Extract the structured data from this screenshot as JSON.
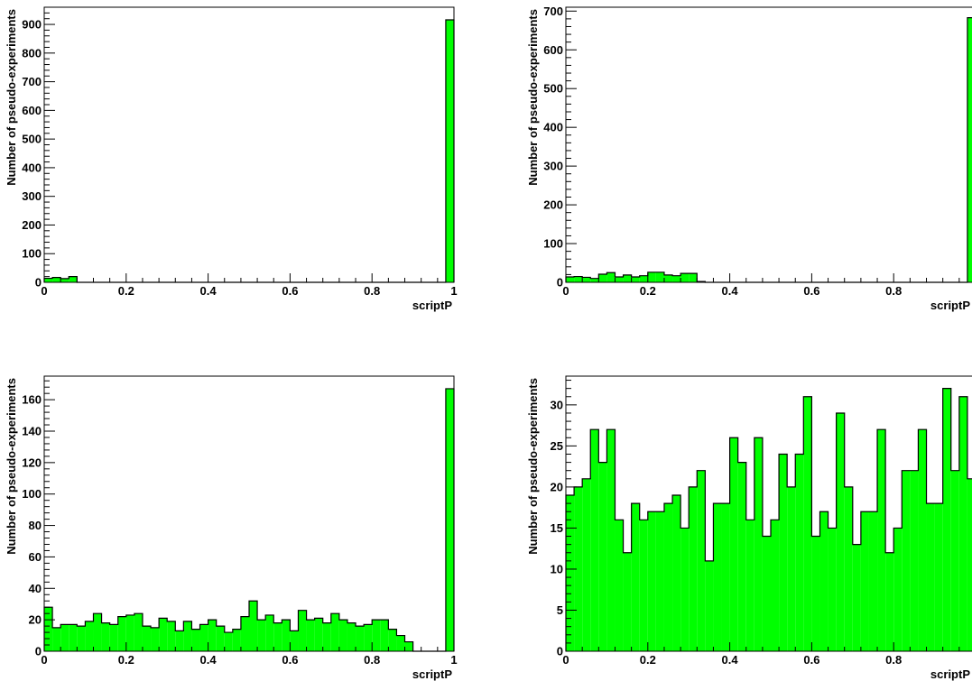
{
  "colors": {
    "fill": "#00ff00",
    "line": "#000000",
    "background": "#ffffff"
  },
  "chart_data": [
    {
      "type": "bar",
      "panel": "top-left",
      "xlabel": "scriptP",
      "ylabel": "Number of pseudo-experiments",
      "xlim": [
        0,
        1
      ],
      "ylim": [
        0,
        960
      ],
      "yticks": [
        0,
        100,
        200,
        300,
        400,
        500,
        600,
        700,
        800,
        900
      ],
      "xticks": [
        0,
        0.2,
        0.4,
        0.6,
        0.8,
        1
      ],
      "grid": false,
      "bin_width": 0.02,
      "bin_start": 0,
      "values": [
        14,
        17,
        13,
        20,
        0,
        0,
        0,
        0,
        0,
        0,
        0,
        0,
        0,
        0,
        0,
        0,
        0,
        0,
        0,
        0,
        0,
        0,
        0,
        0,
        0,
        0,
        0,
        0,
        0,
        0,
        0,
        0,
        0,
        0,
        0,
        0,
        0,
        0,
        0,
        0,
        0,
        0,
        0,
        0,
        0,
        0,
        0,
        0,
        0,
        916
      ]
    },
    {
      "type": "bar",
      "panel": "top-right",
      "xlabel": "scriptP",
      "ylabel": "Number of pseudo-experiments",
      "xlim": [
        0,
        1
      ],
      "ylim": [
        0,
        710
      ],
      "yticks": [
        0,
        100,
        200,
        300,
        400,
        500,
        600,
        700
      ],
      "xticks": [
        0,
        0.2,
        0.4,
        0.6,
        0.8
      ],
      "grid": false,
      "bin_width": 0.02,
      "bin_start": 0,
      "values": [
        14,
        15,
        13,
        10,
        21,
        25,
        14,
        19,
        14,
        17,
        26,
        26,
        19,
        17,
        23,
        23,
        2,
        0,
        0,
        0,
        0,
        0,
        0,
        0,
        0,
        0,
        0,
        0,
        0,
        0,
        0,
        0,
        0,
        0,
        0,
        0,
        0,
        0,
        0,
        0,
        0,
        0,
        0,
        0,
        0,
        0,
        0,
        0,
        0,
        683
      ]
    },
    {
      "type": "bar",
      "panel": "bottom-left",
      "xlabel": "scriptP",
      "ylabel": "Number of pseudo-experiments",
      "xlim": [
        0,
        1
      ],
      "ylim": [
        0,
        175
      ],
      "yticks": [
        0,
        20,
        40,
        60,
        80,
        100,
        120,
        140,
        160
      ],
      "xticks": [
        0,
        0.2,
        0.4,
        0.6,
        0.8,
        1
      ],
      "grid": false,
      "bin_width": 0.02,
      "bin_start": 0,
      "values": [
        28,
        15,
        17,
        17,
        16,
        19,
        24,
        18,
        17,
        22,
        23,
        24,
        16,
        15,
        21,
        19,
        13,
        19,
        14,
        17,
        20,
        16,
        12,
        14,
        22,
        32,
        20,
        23,
        18,
        20,
        13,
        26,
        20,
        21,
        18,
        24,
        20,
        18,
        16,
        17,
        20,
        20,
        14,
        10,
        6,
        0,
        0,
        0,
        0,
        167
      ]
    },
    {
      "type": "bar",
      "panel": "bottom-right",
      "xlabel": "scriptP",
      "ylabel": "Number of pseudo-experiments",
      "xlim": [
        0,
        1
      ],
      "ylim": [
        0,
        33.5
      ],
      "yticks": [
        0,
        5,
        10,
        15,
        20,
        25,
        30
      ],
      "xticks": [
        0,
        0.2,
        0.4,
        0.6,
        0.8
      ],
      "grid": false,
      "bin_width": 0.02,
      "bin_start": 0,
      "values": [
        19,
        20,
        21,
        27,
        23,
        27,
        16,
        12,
        18,
        16,
        17,
        17,
        18,
        19,
        15,
        20,
        22,
        11,
        18,
        18,
        26,
        23,
        16,
        26,
        14,
        16,
        24,
        20,
        24,
        31,
        14,
        17,
        15,
        29,
        20,
        13,
        17,
        17,
        27,
        12,
        15,
        22,
        22,
        27,
        18,
        18,
        32,
        22,
        31,
        21
      ]
    }
  ]
}
